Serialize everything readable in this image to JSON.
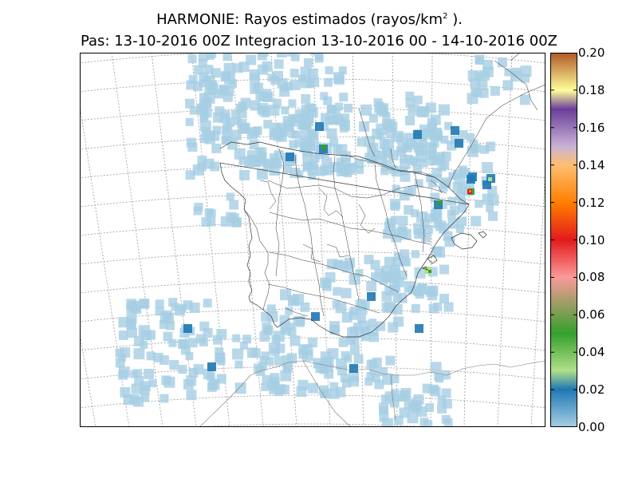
{
  "title": {
    "line1_prefix": "HARMONIE: Rayos estimados  (rayos/km",
    "line1_sup": "2",
    "line1_suffix": " ).",
    "line2": "Pas: 13-10-2016 00Z Integracion 13-10-2016 00 - 14-10-2016 00Z"
  },
  "colorbar": {
    "ticks": [
      "0.00",
      "0.02",
      "0.04",
      "0.06",
      "0.08",
      "0.10",
      "0.12",
      "0.14",
      "0.16",
      "0.18",
      "0.20"
    ],
    "min": 0.0,
    "max": 0.2,
    "stops": [
      {
        "v": 0.0,
        "c": "#a6cee3"
      },
      {
        "v": 0.02,
        "c": "#1f78b4"
      },
      {
        "v": 0.03,
        "c": "#b2df8a"
      },
      {
        "v": 0.05,
        "c": "#33a02c"
      },
      {
        "v": 0.08,
        "c": "#fb9a99"
      },
      {
        "v": 0.1,
        "c": "#e31a1c"
      },
      {
        "v": 0.12,
        "c": "#ff7f00"
      },
      {
        "v": 0.14,
        "c": "#fdbf6f"
      },
      {
        "v": 0.15,
        "c": "#cab2d6"
      },
      {
        "v": 0.17,
        "c": "#6a3d9a"
      },
      {
        "v": 0.18,
        "c": "#ffff99"
      },
      {
        "v": 0.2,
        "c": "#b15928"
      }
    ]
  },
  "map": {
    "colors": {
      "low": "#a6cee3",
      "mid": "#1f78b4",
      "green": "#33a02c",
      "lightgreen": "#b2df8a",
      "red": "#e31a1c",
      "orange": "#ff7f00"
    }
  }
}
